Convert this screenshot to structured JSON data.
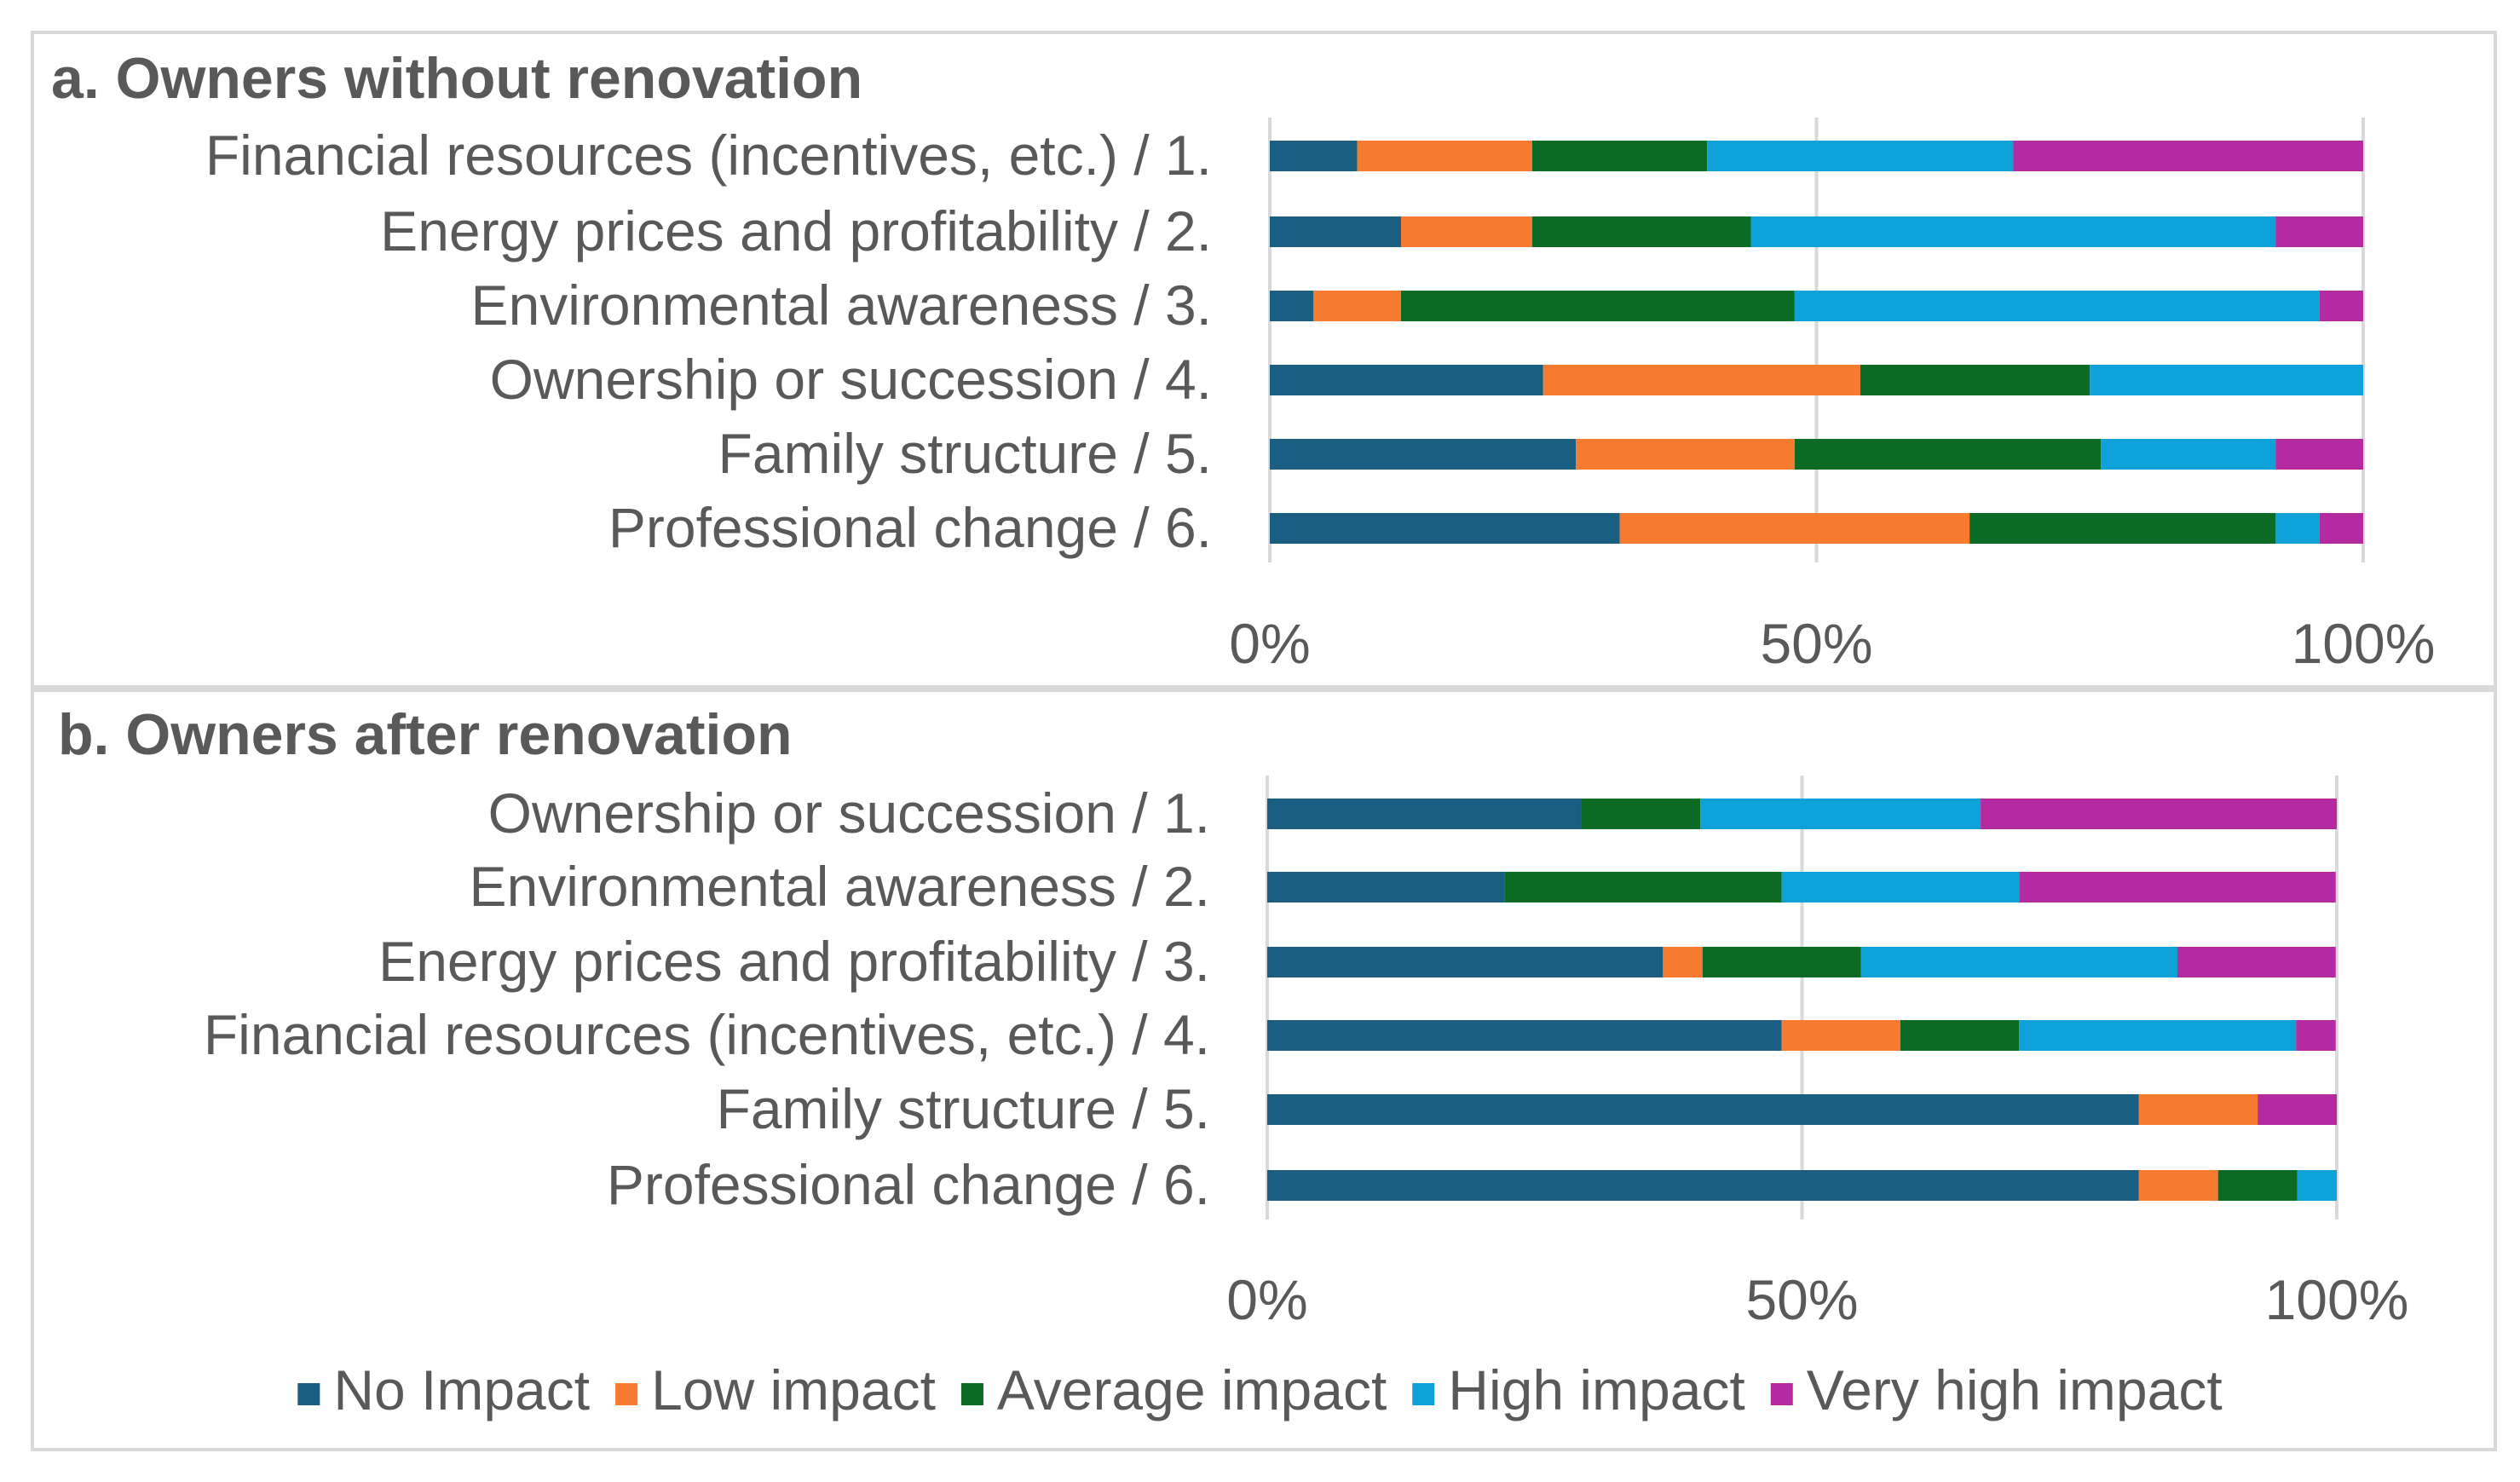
{
  "colors": {
    "no_impact": "#1a5e82",
    "low_impact": "#f77a31",
    "average_impact": "#0b6b24",
    "high_impact": "#0ea2d8",
    "very_high_impact": "#b42aa0",
    "text": "#595959",
    "grid": "#d9d9d9"
  },
  "chart_data": [
    {
      "type": "bar",
      "orientation": "horizontal",
      "stacked": "percent",
      "title": "a. Owners without renovation",
      "categories": [
        "Financial resources (incentives, etc.) / 1.",
        "Energy prices and profitability / 2.",
        "Environmental awareness / 3.",
        "Ownership or succession / 4.",
        "Family structure / 5.",
        "Professional change / 6."
      ],
      "series": [
        {
          "name": "No Impact",
          "color_key": "no_impact",
          "values": [
            8,
            12,
            4,
            25,
            28,
            32
          ]
        },
        {
          "name": "Low impact",
          "color_key": "low_impact",
          "values": [
            16,
            12,
            8,
            29,
            20,
            32
          ]
        },
        {
          "name": "Average impact",
          "color_key": "average_impact",
          "values": [
            16,
            20,
            36,
            21,
            28,
            28
          ]
        },
        {
          "name": "High impact",
          "color_key": "high_impact",
          "values": [
            28,
            48,
            48,
            25,
            16,
            4
          ]
        },
        {
          "name": "Very high impact",
          "color_key": "very_high_impact",
          "values": [
            32,
            8,
            4,
            0,
            8,
            4
          ]
        }
      ],
      "xlim": [
        0,
        100
      ],
      "xticks": [
        "0%",
        "50%",
        "100%"
      ],
      "grid": true
    },
    {
      "type": "bar",
      "orientation": "horizontal",
      "stacked": "percent",
      "title": "b. Owners after renovation",
      "categories": [
        "Ownership or succession / 1.",
        "Environmental awareness / 2.",
        "Energy prices and profitability / 3.",
        "Financial resources (incentives, etc.) / 4.",
        "Family structure / 5.",
        "Professional change / 6."
      ],
      "series": [
        {
          "name": "No Impact",
          "color_key": "no_impact",
          "values": [
            29.4,
            22.2,
            37,
            48.1,
            81.5,
            81.5
          ]
        },
        {
          "name": "Low impact",
          "color_key": "low_impact",
          "values": [
            0,
            0,
            3.7,
            11.1,
            11.1,
            7.4
          ]
        },
        {
          "name": "Average impact",
          "color_key": "average_impact",
          "values": [
            11.1,
            25.9,
            14.8,
            11.1,
            0,
            7.4
          ]
        },
        {
          "name": "High impact",
          "color_key": "high_impact",
          "values": [
            26.2,
            22.2,
            29.6,
            25.9,
            0,
            3.7
          ]
        },
        {
          "name": "Very high impact",
          "color_key": "very_high_impact",
          "values": [
            33.3,
            29.6,
            14.8,
            3.7,
            7.4,
            0
          ]
        }
      ],
      "xlim": [
        0,
        100
      ],
      "xticks": [
        "0%",
        "50%",
        "100%"
      ],
      "grid": true
    }
  ],
  "legend": {
    "items": [
      {
        "label": "No Impact",
        "color_key": "no_impact"
      },
      {
        "label": "Low impact",
        "color_key": "low_impact"
      },
      {
        "label": "Average impact",
        "color_key": "average_impact"
      },
      {
        "label": "High impact",
        "color_key": "high_impact"
      },
      {
        "label": "Very high impact",
        "color_key": "very_high_impact"
      }
    ],
    "placement": "bottom"
  }
}
